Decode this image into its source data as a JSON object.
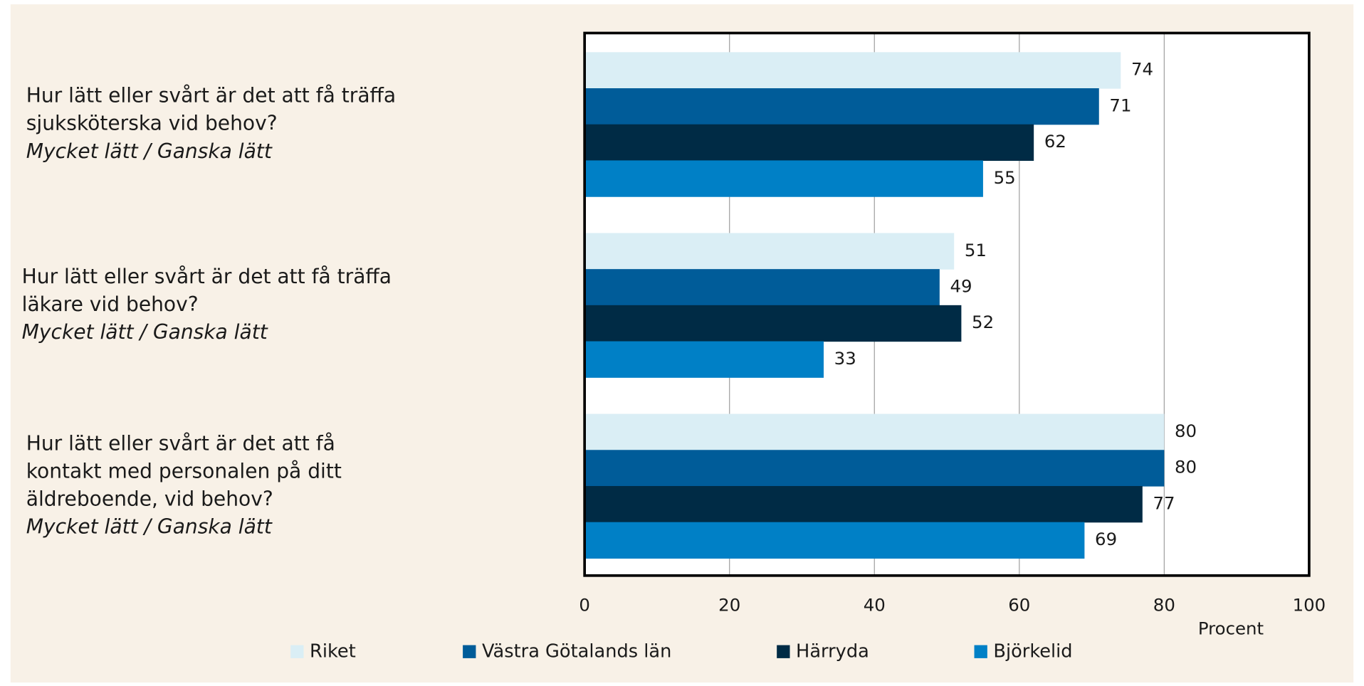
{
  "chart_data": {
    "type": "hbar",
    "categories": [
      [
        "Hur lätt eller svårt är det att få träffa",
        "sjuksköterska vid behov?"
      ],
      [
        "Hur lätt eller svårt är det att få träffa",
        "läkare vid behov?"
      ],
      [
        "Hur lätt eller svårt är det att få",
        "kontakt med personalen på ditt",
        "äldreboende, vid behov?"
      ]
    ],
    "category_subtitles": [
      "Mycket lätt / Ganska lätt",
      "Mycket lätt / Ganska lätt",
      "Mycket lätt / Ganska lätt"
    ],
    "series": [
      {
        "name": "Riket",
        "color": "#daeef5",
        "values": [
          74,
          51,
          80
        ]
      },
      {
        "name": "Västra Götalands län",
        "color": "#005c99",
        "values": [
          71,
          49,
          80
        ]
      },
      {
        "name": "Härryda",
        "color": "#002b45",
        "values": [
          62,
          52,
          77
        ]
      },
      {
        "name": "Björkelid",
        "color": "#0080c6",
        "values": [
          55,
          33,
          69
        ]
      }
    ],
    "xlim": [
      0,
      100
    ],
    "xticks": [
      0,
      20,
      40,
      60,
      80,
      100
    ],
    "xlabel": "Procent",
    "grid": true
  }
}
